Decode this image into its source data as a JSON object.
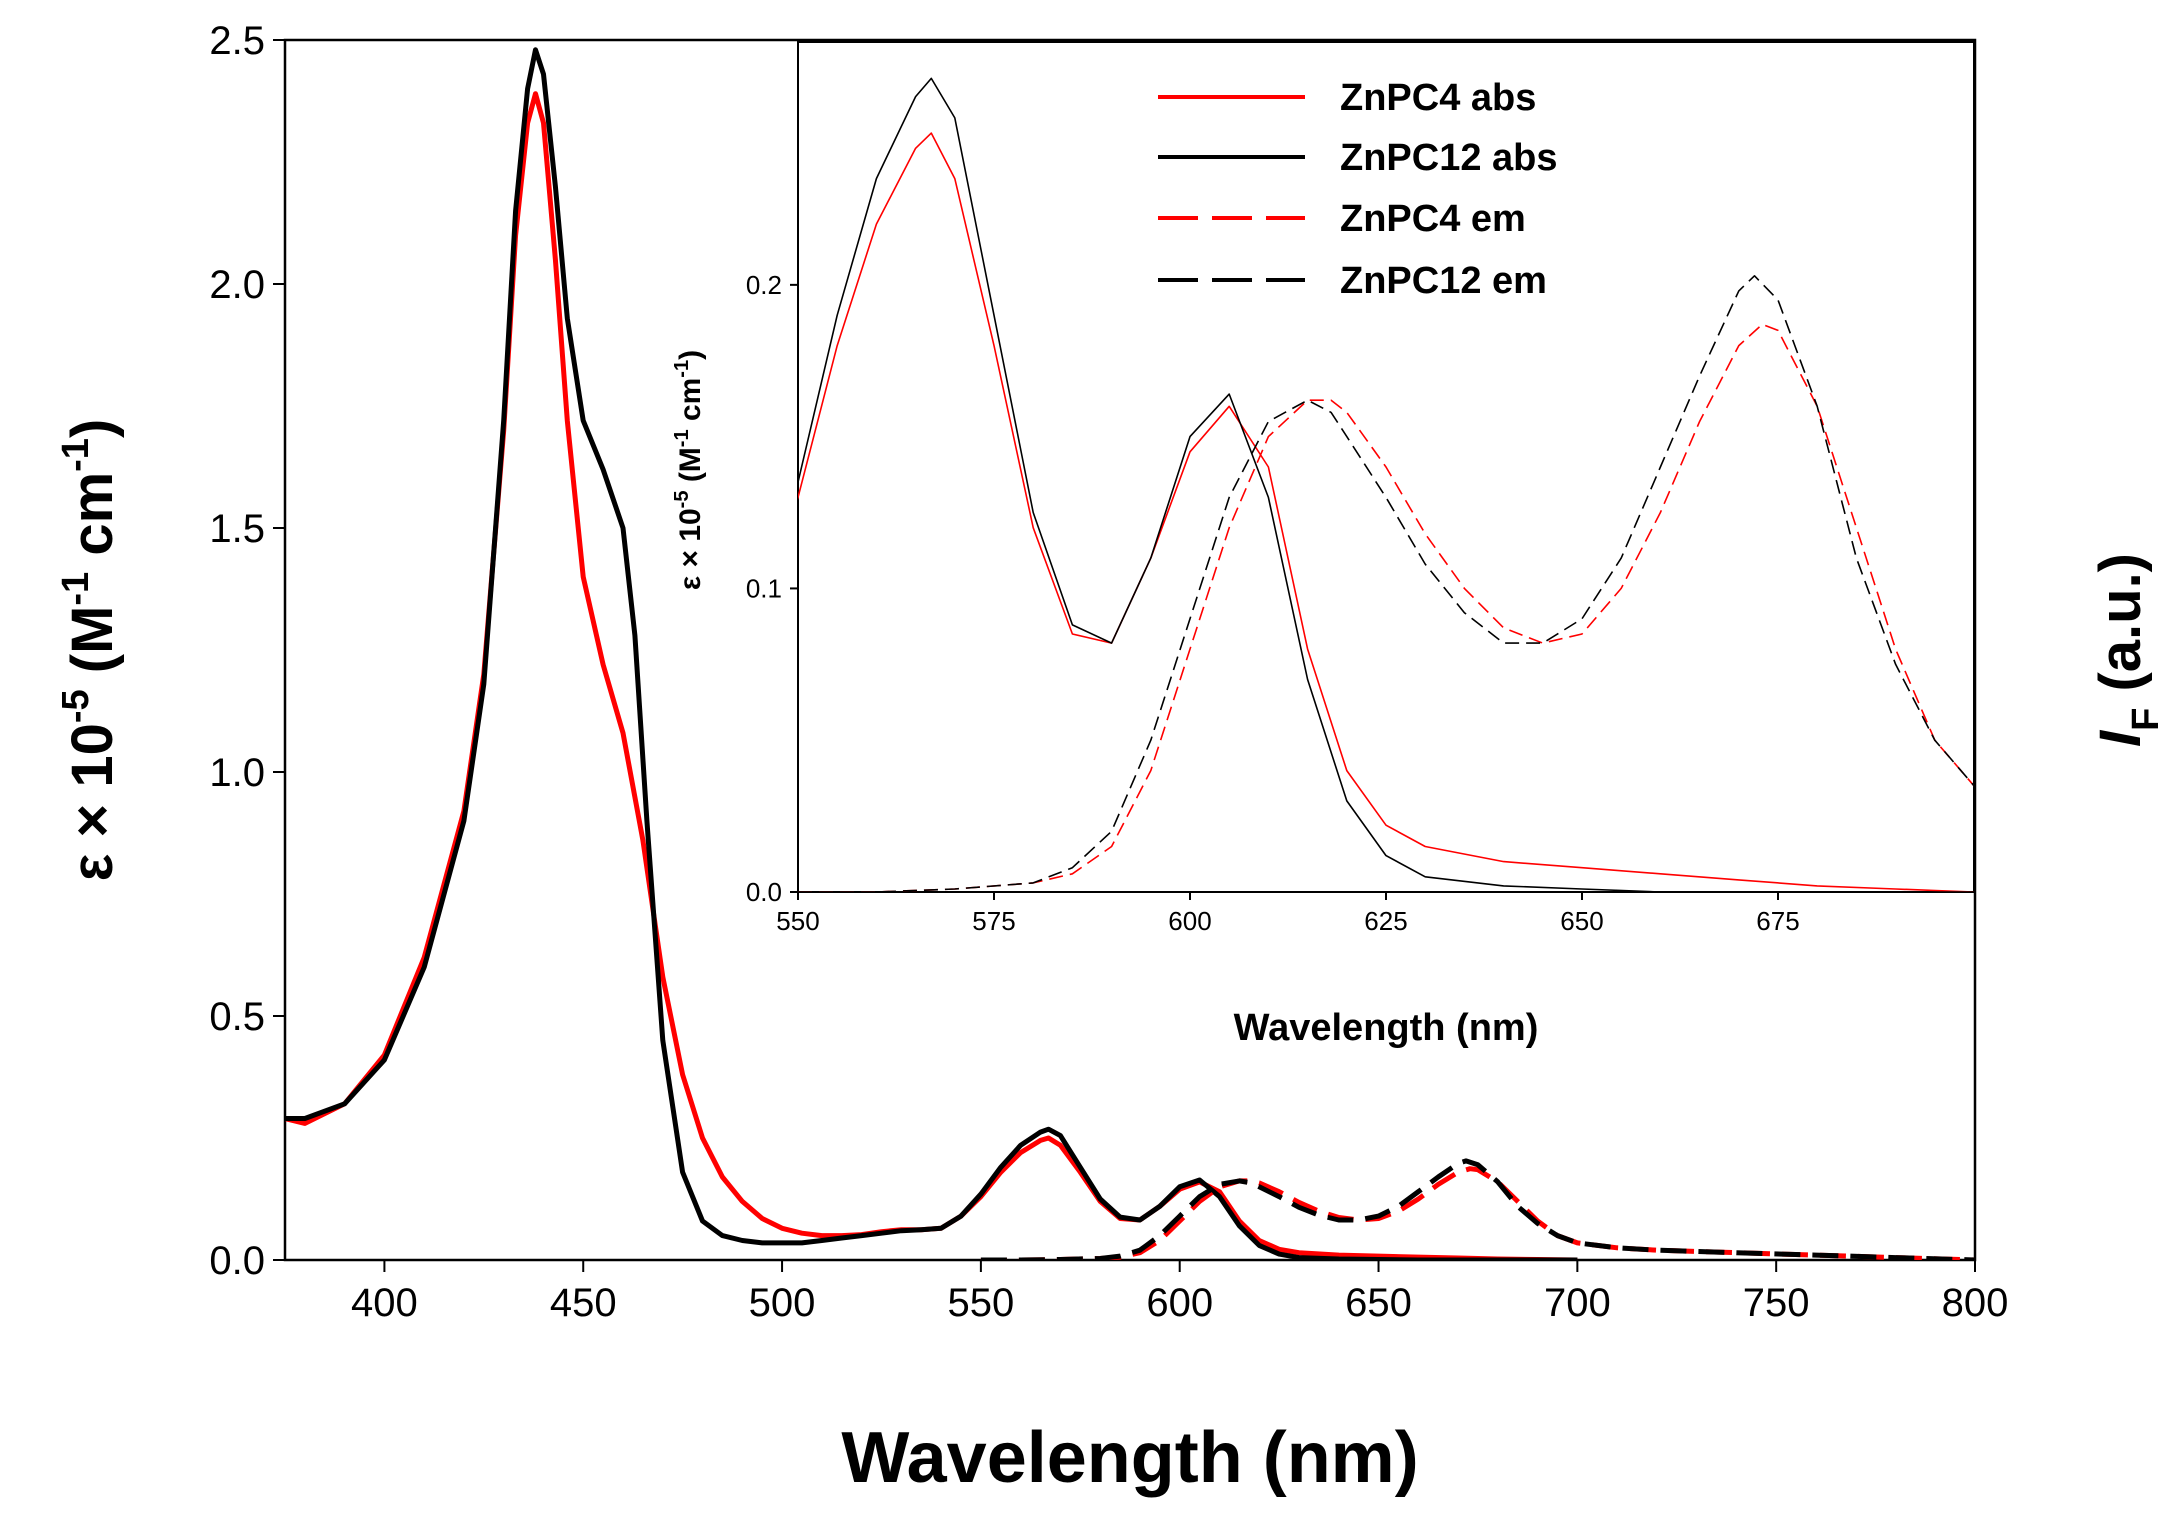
{
  "chart_data": [
    {
      "type": "line",
      "name": "main",
      "xlabel": "Wavelength (nm)",
      "ylabel_left": {
        "base": "ε × 10",
        "exp": "-5",
        "mid": " (M",
        "exp2": "-1",
        "tail": " cm",
        "exp3": "-1",
        "end": ")"
      },
      "ylabel_right": {
        "italic": "I",
        "sub": "F",
        "rest": " (a.u.)"
      },
      "xlim": [
        375,
        800
      ],
      "ylim": [
        0,
        2.5
      ],
      "xticks": [
        "400",
        "450",
        "500",
        "550",
        "600",
        "650",
        "700",
        "750",
        "800"
      ],
      "yticks": [
        "0.0",
        "0.5",
        "1.0",
        "1.5",
        "2.0",
        "2.5"
      ],
      "series": [
        {
          "name": "ZnPC4 abs",
          "color": "#ff0000",
          "dash": false,
          "x": [
            375,
            380,
            390,
            400,
            410,
            420,
            425,
            430,
            433,
            436,
            438,
            440,
            443,
            446,
            450,
            455,
            460,
            465,
            470,
            475,
            480,
            485,
            490,
            495,
            500,
            505,
            510,
            515,
            520,
            525,
            530,
            535,
            540,
            545,
            550,
            555,
            560,
            565,
            567,
            570,
            575,
            580,
            585,
            590,
            595,
            600,
            605,
            610,
            615,
            620,
            625,
            630,
            640,
            650,
            660,
            670,
            680,
            690,
            700
          ],
          "y": [
            0.29,
            0.28,
            0.32,
            0.42,
            0.62,
            0.92,
            1.2,
            1.7,
            2.1,
            2.33,
            2.39,
            2.33,
            2.05,
            1.72,
            1.4,
            1.22,
            1.08,
            0.86,
            0.58,
            0.38,
            0.25,
            0.17,
            0.12,
            0.085,
            0.065,
            0.055,
            0.05,
            0.05,
            0.052,
            0.058,
            0.062,
            0.062,
            0.065,
            0.09,
            0.13,
            0.18,
            0.22,
            0.245,
            0.25,
            0.235,
            0.18,
            0.12,
            0.085,
            0.082,
            0.11,
            0.145,
            0.16,
            0.14,
            0.08,
            0.04,
            0.022,
            0.015,
            0.01,
            0.008,
            0.006,
            0.004,
            0.002,
            0.001,
            0.0
          ]
        },
        {
          "name": "ZnPC12 abs",
          "color": "#000000",
          "dash": false,
          "x": [
            375,
            380,
            390,
            400,
            410,
            420,
            425,
            430,
            433,
            436,
            438,
            440,
            443,
            446,
            450,
            455,
            460,
            463,
            466,
            470,
            475,
            480,
            485,
            490,
            495,
            500,
            505,
            510,
            515,
            520,
            525,
            530,
            535,
            540,
            545,
            550,
            555,
            560,
            565,
            567,
            570,
            575,
            580,
            585,
            590,
            595,
            600,
            605,
            610,
            615,
            620,
            625,
            630,
            640,
            650,
            660,
            670,
            680,
            690,
            700
          ],
          "y": [
            0.29,
            0.29,
            0.32,
            0.41,
            0.6,
            0.9,
            1.18,
            1.72,
            2.15,
            2.4,
            2.48,
            2.43,
            2.2,
            1.93,
            1.72,
            1.62,
            1.5,
            1.28,
            0.9,
            0.45,
            0.18,
            0.08,
            0.05,
            0.04,
            0.035,
            0.035,
            0.035,
            0.04,
            0.045,
            0.05,
            0.055,
            0.06,
            0.062,
            0.065,
            0.09,
            0.135,
            0.19,
            0.235,
            0.262,
            0.268,
            0.255,
            0.19,
            0.125,
            0.088,
            0.082,
            0.11,
            0.15,
            0.164,
            0.13,
            0.07,
            0.03,
            0.012,
            0.005,
            0.002,
            0.001,
            0.0,
            0.0,
            0.0,
            0.0,
            0.0
          ]
        },
        {
          "name": "ZnPC4 em",
          "color": "#ff0000",
          "dash": true,
          "x": [
            550,
            560,
            570,
            580,
            585,
            590,
            595,
            600,
            605,
            610,
            615,
            618,
            620,
            625,
            630,
            635,
            640,
            645,
            650,
            655,
            660,
            665,
            670,
            673,
            675,
            680,
            685,
            690,
            695,
            700,
            710,
            720,
            740,
            760,
            780,
            800
          ],
          "y": [
            0.0,
            0.0,
            0.001,
            0.003,
            0.006,
            0.015,
            0.04,
            0.08,
            0.12,
            0.15,
            0.162,
            0.162,
            0.158,
            0.14,
            0.118,
            0.1,
            0.087,
            0.082,
            0.085,
            0.1,
            0.125,
            0.155,
            0.18,
            0.187,
            0.185,
            0.16,
            0.12,
            0.08,
            0.05,
            0.035,
            0.025,
            0.02,
            0.015,
            0.01,
            0.005,
            0.0
          ]
        },
        {
          "name": "ZnPC12 em",
          "color": "#000000",
          "dash": true,
          "x": [
            550,
            560,
            570,
            580,
            585,
            590,
            595,
            600,
            605,
            610,
            615,
            618,
            620,
            625,
            630,
            635,
            640,
            645,
            650,
            655,
            660,
            665,
            670,
            672,
            675,
            680,
            685,
            690,
            695,
            700,
            710,
            720,
            740,
            760,
            780,
            800
          ],
          "y": [
            0.0,
            0.0,
            0.001,
            0.003,
            0.008,
            0.02,
            0.05,
            0.09,
            0.13,
            0.155,
            0.162,
            0.158,
            0.15,
            0.13,
            0.108,
            0.092,
            0.082,
            0.082,
            0.09,
            0.11,
            0.14,
            0.17,
            0.198,
            0.203,
            0.195,
            0.16,
            0.11,
            0.075,
            0.05,
            0.035,
            0.025,
            0.02,
            0.015,
            0.01,
            0.005,
            0.0
          ]
        }
      ]
    },
    {
      "type": "line",
      "name": "inset",
      "xlabel": "Wavelength (nm)",
      "ylabel": {
        "base": "ε × 10",
        "exp": "-5",
        "mid": " (M",
        "exp2": "-1",
        "tail": " cm",
        "exp3": "-1",
        "end": ")"
      },
      "xlim": [
        550,
        700
      ],
      "ylim": [
        0,
        0.28
      ],
      "xticks": [
        "550",
        "575",
        "600",
        "625",
        "650",
        "675"
      ],
      "yticks": [
        "0.0",
        "0.1",
        "0.2"
      ],
      "legend_position": "top-right",
      "series_ref": "same as main"
    }
  ],
  "legend": [
    {
      "label": "ZnPC4 abs",
      "color": "#ff0000",
      "dash": false
    },
    {
      "label": "ZnPC12 abs",
      "color": "#000000",
      "dash": false
    },
    {
      "label": "ZnPC4 em",
      "color": "#ff0000",
      "dash": true
    },
    {
      "label": "ZnPC12 em",
      "color": "#000000",
      "dash": true
    }
  ]
}
